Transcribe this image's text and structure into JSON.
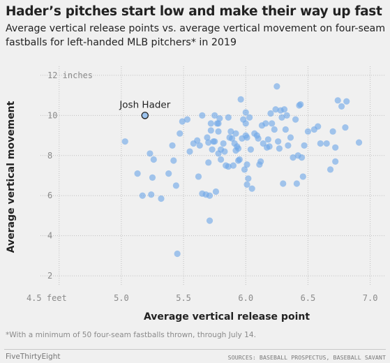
{
  "header": {
    "title": "Hader’s pitches start low and make their way up fast",
    "subtitle": "Average vertical release points vs. average vertical movement on four-seam fastballs for left-handed MLB pitchers* in 2019"
  },
  "footer": {
    "footnote": "*With a minimum of 50 four-seam fastballs thrown, through July 14.",
    "brand": "FiveThirtyEight",
    "sources": "SOURCES: BASEBALL PROSPECTUS, BASEBALL SAVANT"
  },
  "chart_data": {
    "type": "scatter",
    "xlabel": "Average vertical release point",
    "ylabel": "Average vertical movement",
    "xlim": [
      4.35,
      7.12
    ],
    "ylim": [
      1.55,
      12.45
    ],
    "x_ticks": [
      4.5,
      5.0,
      5.5,
      6.0,
      6.5,
      7.0
    ],
    "x_tick_labels": [
      "4.5 feet",
      "5.0",
      "5.5",
      "6.0",
      "6.5",
      "7.0"
    ],
    "y_ticks": [
      2,
      4,
      6,
      8,
      10,
      12
    ],
    "y_tick_labels": [
      "2",
      "4",
      "6",
      "8",
      "10",
      "12 inches"
    ],
    "grid": true,
    "colors": {
      "points": "#6fa8e8",
      "highlight": "#1f1f1f",
      "grid": "#bfbfbf"
    },
    "highlight": {
      "name": "Josh Hader",
      "x": 5.19,
      "y": 10.0
    },
    "points": [
      [
        5.03,
        8.7
      ],
      [
        5.13,
        7.1
      ],
      [
        5.17,
        6.0
      ],
      [
        5.23,
        8.1
      ],
      [
        5.24,
        6.05
      ],
      [
        5.25,
        6.9
      ],
      [
        5.26,
        7.8
      ],
      [
        5.32,
        5.85
      ],
      [
        5.38,
        7.1
      ],
      [
        5.41,
        8.5
      ],
      [
        5.42,
        7.75
      ],
      [
        5.44,
        6.5
      ],
      [
        5.45,
        3.1
      ],
      [
        5.47,
        9.1
      ],
      [
        5.49,
        9.7
      ],
      [
        5.53,
        9.8
      ],
      [
        5.55,
        8.2
      ],
      [
        5.58,
        8.6
      ],
      [
        5.61,
        8.75
      ],
      [
        5.62,
        6.95
      ],
      [
        5.63,
        8.5
      ],
      [
        5.65,
        6.1
      ],
      [
        5.65,
        10.0
      ],
      [
        5.68,
        6.05
      ],
      [
        5.69,
        8.9
      ],
      [
        5.7,
        7.65
      ],
      [
        5.7,
        8.65
      ],
      [
        5.71,
        6.0
      ],
      [
        5.71,
        4.75
      ],
      [
        5.72,
        9.6
      ],
      [
        5.72,
        9.25
      ],
      [
        5.73,
        8.3
      ],
      [
        5.74,
        8.7
      ],
      [
        5.75,
        8.7
      ],
      [
        5.75,
        10.0
      ],
      [
        5.76,
        6.2
      ],
      [
        5.77,
        9.6
      ],
      [
        5.78,
        9.6
      ],
      [
        5.78,
        9.2
      ],
      [
        5.78,
        8.1
      ],
      [
        5.79,
        9.85
      ],
      [
        5.8,
        8.3
      ],
      [
        5.8,
        7.8
      ],
      [
        5.82,
        8.6
      ],
      [
        5.83,
        8.2
      ],
      [
        5.84,
        7.5
      ],
      [
        5.86,
        7.45
      ],
      [
        5.86,
        9.9
      ],
      [
        5.87,
        8.9
      ],
      [
        5.88,
        9.2
      ],
      [
        5.89,
        8.85
      ],
      [
        5.9,
        7.5
      ],
      [
        5.91,
        8.6
      ],
      [
        5.92,
        8.25
      ],
      [
        5.92,
        9.1
      ],
      [
        5.93,
        8.45
      ],
      [
        5.94,
        8.35
      ],
      [
        5.94,
        7.75
      ],
      [
        5.95,
        7.8
      ],
      [
        5.96,
        10.8
      ],
      [
        5.97,
        8.85
      ],
      [
        5.98,
        9.8
      ],
      [
        5.99,
        7.3
      ],
      [
        6.0,
        10.15
      ],
      [
        6.0,
        9.6
      ],
      [
        6.0,
        9.0
      ],
      [
        6.01,
        7.55
      ],
      [
        6.01,
        6.55
      ],
      [
        6.01,
        8.9
      ],
      [
        6.02,
        6.85
      ],
      [
        6.03,
        9.9
      ],
      [
        6.04,
        8.3
      ],
      [
        6.05,
        6.35
      ],
      [
        6.07,
        9.1
      ],
      [
        6.09,
        9.0
      ],
      [
        6.1,
        8.85
      ],
      [
        6.11,
        7.55
      ],
      [
        6.12,
        7.7
      ],
      [
        6.13,
        9.5
      ],
      [
        6.14,
        8.6
      ],
      [
        6.16,
        9.6
      ],
      [
        6.17,
        8.4
      ],
      [
        6.18,
        8.8
      ],
      [
        6.19,
        8.45
      ],
      [
        6.2,
        10.1
      ],
      [
        6.21,
        9.6
      ],
      [
        6.23,
        9.3
      ],
      [
        6.24,
        10.3
      ],
      [
        6.25,
        11.45
      ],
      [
        6.26,
        8.7
      ],
      [
        6.27,
        8.35
      ],
      [
        6.28,
        10.25
      ],
      [
        6.29,
        9.9
      ],
      [
        6.3,
        6.6
      ],
      [
        6.31,
        10.3
      ],
      [
        6.32,
        9.3
      ],
      [
        6.33,
        10.0
      ],
      [
        6.34,
        8.5
      ],
      [
        6.36,
        8.9
      ],
      [
        6.38,
        7.9
      ],
      [
        6.4,
        9.8
      ],
      [
        6.41,
        6.6
      ],
      [
        6.42,
        8.0
      ],
      [
        6.43,
        10.5
      ],
      [
        6.45,
        7.9
      ],
      [
        6.46,
        6.95
      ],
      [
        6.47,
        8.5
      ],
      [
        6.5,
        9.2
      ],
      [
        6.55,
        9.3
      ],
      [
        6.58,
        9.45
      ],
      [
        6.6,
        8.6
      ],
      [
        6.65,
        8.6
      ],
      [
        6.68,
        7.3
      ],
      [
        6.7,
        9.2
      ],
      [
        6.72,
        7.7
      ],
      [
        6.74,
        10.75
      ],
      [
        6.77,
        10.45
      ],
      [
        6.8,
        9.4
      ],
      [
        6.81,
        10.7
      ],
      [
        6.91,
        8.65
      ],
      [
        6.44,
        10.55
      ],
      [
        6.72,
        8.4
      ]
    ]
  }
}
